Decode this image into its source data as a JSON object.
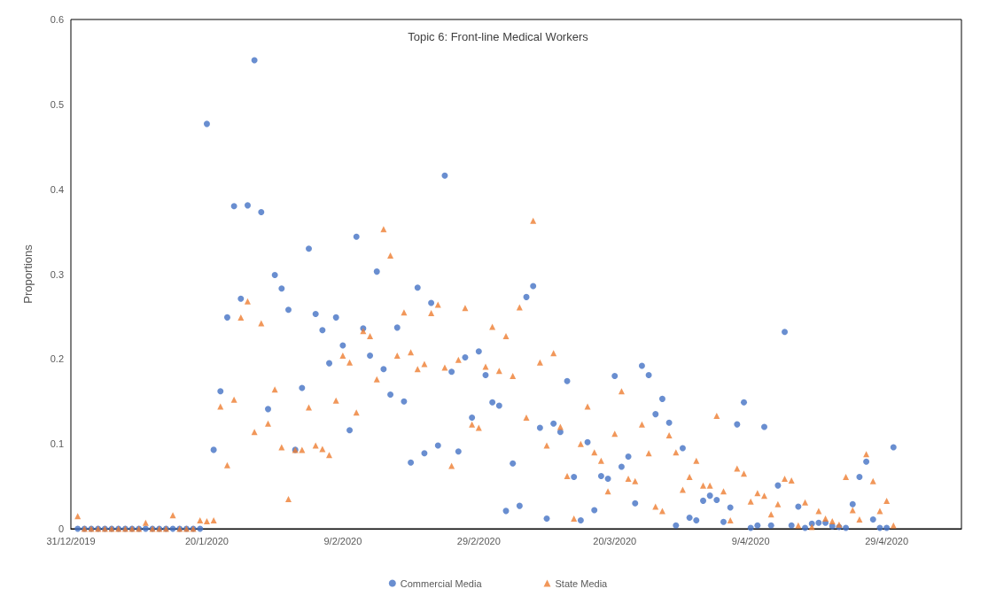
{
  "chart_data": {
    "type": "scatter",
    "title": "Topic 6: Front-line Medical Workers",
    "ylabel": "Proportions",
    "x": [
      "2020-01-01",
      "2020-01-02",
      "2020-01-03",
      "2020-01-04",
      "2020-01-05",
      "2020-01-06",
      "2020-01-07",
      "2020-01-08",
      "2020-01-09",
      "2020-01-10",
      "2020-01-11",
      "2020-01-12",
      "2020-01-13",
      "2020-01-14",
      "2020-01-15",
      "2020-01-16",
      "2020-01-17",
      "2020-01-18",
      "2020-01-19",
      "2020-01-20",
      "2020-01-21",
      "2020-01-22",
      "2020-01-23",
      "2020-01-24",
      "2020-01-25",
      "2020-01-26",
      "2020-01-27",
      "2020-01-28",
      "2020-01-29",
      "2020-01-30",
      "2020-01-31",
      "2020-02-01",
      "2020-02-02",
      "2020-02-03",
      "2020-02-04",
      "2020-02-05",
      "2020-02-06",
      "2020-02-07",
      "2020-02-08",
      "2020-02-09",
      "2020-02-10",
      "2020-02-11",
      "2020-02-12",
      "2020-02-13",
      "2020-02-14",
      "2020-02-15",
      "2020-02-16",
      "2020-02-17",
      "2020-02-18",
      "2020-02-19",
      "2020-02-20",
      "2020-02-21",
      "2020-02-22",
      "2020-02-23",
      "2020-02-24",
      "2020-02-25",
      "2020-02-26",
      "2020-02-27",
      "2020-02-28",
      "2020-02-29",
      "2020-03-01",
      "2020-03-02",
      "2020-03-03",
      "2020-03-04",
      "2020-03-05",
      "2020-03-06",
      "2020-03-07",
      "2020-03-08",
      "2020-03-09",
      "2020-03-10",
      "2020-03-11",
      "2020-03-12",
      "2020-03-13",
      "2020-03-14",
      "2020-03-15",
      "2020-03-16",
      "2020-03-17",
      "2020-03-18",
      "2020-03-19",
      "2020-03-20",
      "2020-03-21",
      "2020-03-22",
      "2020-03-23",
      "2020-03-24",
      "2020-03-25",
      "2020-03-26",
      "2020-03-27",
      "2020-03-28",
      "2020-03-29",
      "2020-03-30",
      "2020-03-31",
      "2020-04-01",
      "2020-04-02",
      "2020-04-03",
      "2020-04-04",
      "2020-04-05",
      "2020-04-06",
      "2020-04-07",
      "2020-04-08",
      "2020-04-09",
      "2020-04-10",
      "2020-04-11",
      "2020-04-12",
      "2020-04-13",
      "2020-04-14",
      "2020-04-15",
      "2020-04-16",
      "2020-04-17",
      "2020-04-18",
      "2020-04-19",
      "2020-04-20",
      "2020-04-21",
      "2020-04-22",
      "2020-04-23",
      "2020-04-24",
      "2020-04-25",
      "2020-04-26",
      "2020-04-27",
      "2020-04-28",
      "2020-04-29",
      "2020-04-30"
    ],
    "series": [
      {
        "name": "Commercial Media",
        "color": "#4472c4",
        "marker": "circle",
        "values": [
          0,
          0,
          0,
          0,
          0,
          0,
          0,
          0,
          0,
          0,
          0,
          0,
          0,
          0,
          0,
          0,
          0,
          0,
          0,
          0.477,
          0.093,
          0.162,
          0.249,
          0.38,
          0.271,
          0.381,
          0.552,
          0.373,
          0.141,
          0.299,
          0.283,
          0.258,
          0.093,
          0.166,
          0.33,
          0.253,
          0.234,
          0.195,
          0.249,
          0.216,
          0.116,
          0.344,
          0.236,
          0.204,
          0.303,
          0.188,
          0.158,
          0.237,
          0.15,
          0.078,
          0.284,
          0.089,
          0.266,
          0.098,
          0.416,
          0.185,
          0.091,
          0.202,
          0.131,
          0.209,
          0.181,
          0.149,
          0.145,
          0.021,
          0.077,
          0.027,
          0.273,
          0.286,
          0.119,
          0.012,
          0.124,
          0.114,
          0.174,
          0.061,
          0.01,
          0.102,
          0.022,
          0.062,
          0.059,
          0.18,
          0.073,
          0.085,
          0.03,
          0.192,
          0.181,
          0.135,
          0.153,
          0.125,
          0.004,
          0.095,
          0.013,
          0.01,
          0.033,
          0.039,
          0.034,
          0.008,
          0.025,
          0.123,
          0.149,
          0.001,
          0.004,
          0.12,
          0.004,
          0.051,
          0.232,
          0.004,
          0.026,
          0.001,
          0.006,
          0.007,
          0.007,
          0.003,
          0.002,
          0.001,
          0.029,
          0.061,
          0.079,
          0.011,
          0.001,
          0.001,
          0.096
        ]
      },
      {
        "name": "State Media",
        "color": "#ed7d31",
        "marker": "triangle",
        "values": [
          0.015,
          0,
          0,
          0,
          0,
          0,
          0,
          0,
          0,
          0,
          0.007,
          0,
          0,
          0,
          0.016,
          0,
          0,
          0,
          0.01,
          0.009,
          0.01,
          0.144,
          0.075,
          0.152,
          0.249,
          0.268,
          0.114,
          0.242,
          0.124,
          0.164,
          0.096,
          0.035,
          0.093,
          0.093,
          0.143,
          0.098,
          0.094,
          0.087,
          0.151,
          0.204,
          0.196,
          0.137,
          0.233,
          0.227,
          0.176,
          0.353,
          0.322,
          0.204,
          0.255,
          0.208,
          0.188,
          0.194,
          0.254,
          0.264,
          0.19,
          0.074,
          0.199,
          0.26,
          0.123,
          0.119,
          0.191,
          0.238,
          0.186,
          0.227,
          0.18,
          0.261,
          0.131,
          0.363,
          0.196,
          0.098,
          0.207,
          0.12,
          0.062,
          0.012,
          0.1,
          0.144,
          0.09,
          0.08,
          0.044,
          0.112,
          0.162,
          0.059,
          0.056,
          0.123,
          0.089,
          0.026,
          0.021,
          0.11,
          0.09,
          0.046,
          0.061,
          0.08,
          0.051,
          0.051,
          0.133,
          0.044,
          0.01,
          0.071,
          0.065,
          0.032,
          0.042,
          0.039,
          0.017,
          0.029,
          0.059,
          0.057,
          0.004,
          0.031,
          0.002,
          0.021,
          0.012,
          0.009,
          0.005,
          0.061,
          0.022,
          0.011,
          0.088,
          0.056,
          0.021,
          0.033,
          0.004
        ]
      }
    ],
    "xlim": [
      "2019-12-31",
      "2020-05-10"
    ],
    "xticks": [
      {
        "value": "2019-12-31",
        "label": "31/12/2019"
      },
      {
        "value": "2020-01-20",
        "label": "20/1/2020"
      },
      {
        "value": "2020-02-09",
        "label": "9/2/2020"
      },
      {
        "value": "2020-02-29",
        "label": "29/2/2020"
      },
      {
        "value": "2020-03-20",
        "label": "20/3/2020"
      },
      {
        "value": "2020-04-09",
        "label": "9/4/2020"
      },
      {
        "value": "2020-04-29",
        "label": "29/4/2020"
      }
    ],
    "ylim": [
      0,
      0.6
    ],
    "yticks": [
      0,
      0.1,
      0.2,
      0.3,
      0.4,
      0.5,
      0.6
    ],
    "grid": false,
    "legend": "bottom"
  }
}
